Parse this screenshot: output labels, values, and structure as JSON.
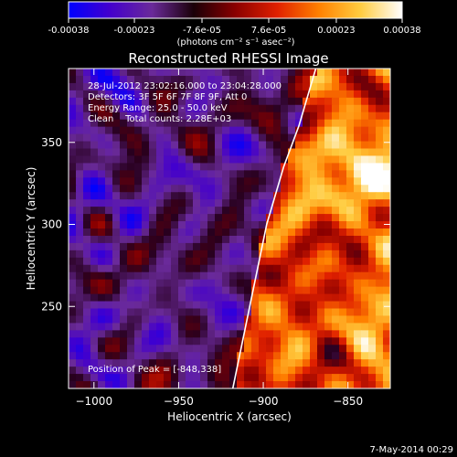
{
  "colorbar": {
    "tick_labels": [
      "-0.00038",
      "-0.00023",
      "-7.6e-05",
      "7.6e-05",
      "0.00023",
      "0.00038"
    ],
    "tick_values": [
      -0.00038,
      -0.00023,
      -7.6e-05,
      7.6e-05,
      0.00023,
      0.00038
    ],
    "range": [
      -0.00038,
      0.00038
    ],
    "unit_label": "(photons cm⁻² s⁻¹ asec⁻²)",
    "colors": [
      "#0000ff",
      "#4400cc",
      "#6a2a9a",
      "#1a0008",
      "#8a0000",
      "#e02000",
      "#ff8000",
      "#ffcc40",
      "#ffffff"
    ]
  },
  "chart_data": {
    "type": "heatmap",
    "title": "Reconstructed RHESSI Image",
    "xlabel": "Heliocentric X (arcsec)",
    "ylabel": "Heliocentric Y (arcsec)",
    "xlim": [
      -1015,
      -825
    ],
    "ylim": [
      200,
      395
    ],
    "x_ticks": [
      -1000,
      -950,
      -900,
      -850
    ],
    "x_tick_labels": [
      "−1000",
      "−950",
      "−900",
      "−850"
    ],
    "y_ticks": [
      250,
      300,
      350
    ],
    "y_tick_labels": [
      "250",
      "300",
      "350"
    ],
    "limb_curve": [
      [
        -918,
        200
      ],
      [
        -912,
        230
      ],
      [
        -905,
        265
      ],
      [
        -898,
        300
      ],
      [
        -888,
        335
      ],
      [
        -879,
        360
      ],
      [
        -869,
        395
      ]
    ],
    "info_lines": [
      "28-Jul-2012 23:02:16.000 to 23:04:28.000",
      "Detectors: 3F 5F 6F 7F 8F 9F, Att 0",
      "Energy Range: 25.0 - 50.0 keV",
      "Clean    Total counts: 2.28E+03"
    ],
    "peak_label": "Position of Peak = [-848,338]",
    "peak": [
      -848,
      338
    ]
  },
  "footer": {
    "date": "7-May-2014 00:29"
  }
}
